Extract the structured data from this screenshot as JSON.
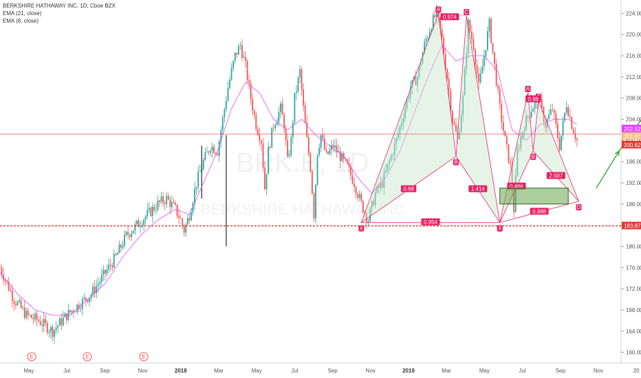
{
  "legend": {
    "title": "BERKSHIRE HATHAWAY INC, 1D, Cboe BZX",
    "ema21": "EMA (21, close)",
    "ema8": "EMA (8, close)"
  },
  "watermark": {
    "line1": "BRK.B, 1D",
    "line2": "BERKSHIRE HATHAWAY INC"
  },
  "colors": {
    "up": "#26a69a",
    "down": "#ef5350",
    "pattern": "#e91e63",
    "pattern_fill": "#c8e6c9",
    "support": "#e53935",
    "zone": "#6aa84f",
    "arrow": "#2e9d2e",
    "ema": "#e040fb"
  },
  "chart_data": {
    "type": "candlestick",
    "symbol": "BRK.B",
    "ylim": [
      158,
      226
    ],
    "y_ticks": [
      160,
      164,
      168,
      172,
      176,
      180,
      184,
      188,
      192,
      196,
      200,
      204,
      208,
      212,
      216,
      220,
      224
    ],
    "x_ticks": [
      "May",
      "Jul",
      "Sep",
      "Nov",
      "2018",
      "Mar",
      "May",
      "Jul",
      "Sep",
      "Nov",
      "2019",
      "Mar",
      "May",
      "Jul",
      "Sep",
      "Nov",
      "20"
    ],
    "price_markers": [
      {
        "value": "202.52",
        "color": "#e040fb"
      },
      {
        "value": "201.07",
        "color": "#f4c085"
      },
      {
        "value": "200.62",
        "color": "#e53935"
      }
    ],
    "support": {
      "value": "183.87"
    },
    "earnings_labels": [
      "E",
      "E",
      "E"
    ],
    "price_path": [
      [
        0,
        176
      ],
      [
        8,
        170
      ],
      [
        15,
        167
      ],
      [
        22,
        166
      ],
      [
        30,
        164
      ],
      [
        38,
        167
      ],
      [
        45,
        169
      ],
      [
        52,
        171
      ],
      [
        60,
        175
      ],
      [
        66,
        178
      ],
      [
        72,
        182
      ],
      [
        78,
        184
      ],
      [
        84,
        186
      ],
      [
        90,
        188
      ],
      [
        95,
        189
      ],
      [
        100,
        187
      ],
      [
        103,
        185
      ],
      [
        105,
        183
      ],
      [
        108,
        186
      ],
      [
        112,
        192
      ],
      [
        116,
        196
      ],
      [
        120,
        199
      ],
      [
        124,
        198
      ],
      [
        127,
        204
      ],
      [
        130,
        210
      ],
      [
        134,
        216
      ],
      [
        137,
        218
      ],
      [
        140,
        214
      ],
      [
        143,
        208
      ],
      [
        146,
        203
      ],
      [
        149,
        200
      ],
      [
        151,
        191
      ],
      [
        153,
        198
      ],
      [
        156,
        203
      ],
      [
        160,
        206
      ],
      [
        162,
        203
      ],
      [
        164,
        196
      ],
      [
        166,
        200
      ],
      [
        168,
        208
      ],
      [
        171,
        213
      ],
      [
        173,
        206
      ],
      [
        175,
        200
      ],
      [
        177,
        195
      ],
      [
        179,
        186
      ],
      [
        181,
        198
      ],
      [
        183,
        201
      ],
      [
        186,
        197
      ],
      [
        190,
        199
      ],
      [
        194,
        197
      ],
      [
        198,
        195
      ],
      [
        202,
        192
      ],
      [
        206,
        188
      ],
      [
        210,
        185
      ],
      [
        214,
        190
      ],
      [
        218,
        192
      ],
      [
        222,
        196
      ],
      [
        226,
        200
      ],
      [
        230,
        205
      ],
      [
        234,
        210
      ],
      [
        238,
        212
      ],
      [
        242,
        218
      ],
      [
        246,
        222
      ],
      [
        249,
        224
      ],
      [
        252,
        219
      ],
      [
        255,
        212
      ],
      [
        258,
        204
      ],
      [
        261,
        200
      ],
      [
        264,
        208
      ],
      [
        267,
        222
      ],
      [
        270,
        218
      ],
      [
        273,
        210
      ],
      [
        276,
        216
      ],
      [
        279,
        222
      ],
      [
        282,
        214
      ],
      [
        285,
        206
      ],
      [
        288,
        200
      ],
      [
        291,
        195
      ],
      [
        293,
        187
      ],
      [
        295,
        198
      ],
      [
        299,
        203
      ],
      [
        303,
        206
      ],
      [
        307,
        208
      ],
      [
        311,
        203
      ],
      [
        315,
        206
      ],
      [
        319,
        199
      ],
      [
        323,
        207
      ],
      [
        326,
        203
      ],
      [
        329,
        200
      ]
    ],
    "ema21": [
      [
        0,
        175
      ],
      [
        10,
        171
      ],
      [
        20,
        168
      ],
      [
        30,
        167
      ],
      [
        40,
        167
      ],
      [
        50,
        170
      ],
      [
        60,
        173
      ],
      [
        70,
        178
      ],
      [
        80,
        182
      ],
      [
        90,
        185
      ],
      [
        100,
        187
      ],
      [
        108,
        186
      ],
      [
        116,
        192
      ],
      [
        124,
        198
      ],
      [
        132,
        206
      ],
      [
        140,
        211
      ],
      [
        148,
        209
      ],
      [
        156,
        204
      ],
      [
        164,
        202
      ],
      [
        172,
        204
      ],
      [
        180,
        201
      ],
      [
        188,
        199
      ],
      [
        196,
        197
      ],
      [
        204,
        193
      ],
      [
        212,
        190
      ],
      [
        220,
        193
      ],
      [
        228,
        198
      ],
      [
        236,
        205
      ],
      [
        244,
        212
      ],
      [
        252,
        218
      ],
      [
        260,
        215
      ],
      [
        268,
        216
      ],
      [
        276,
        216
      ],
      [
        284,
        213
      ],
      [
        292,
        202
      ],
      [
        300,
        200
      ],
      [
        308,
        203
      ],
      [
        316,
        204
      ],
      [
        324,
        204
      ],
      [
        329,
        203
      ]
    ],
    "pattern1": {
      "labels": [
        "X",
        "A",
        "B",
        "C",
        "D"
      ],
      "points": [
        [
          206,
          184.5
        ],
        [
          250,
          224
        ],
        [
          260,
          197
        ],
        [
          266,
          223.5
        ],
        [
          285,
          184.5
        ]
      ],
      "ratios": [
        "0.68",
        "0.974",
        "1.414",
        "0.954"
      ]
    },
    "pattern2": {
      "labels": [
        "X",
        "A",
        "B",
        "C",
        "D"
      ],
      "points": [
        [
          285,
          184.5
        ],
        [
          301,
          209
        ],
        [
          304,
          198
        ],
        [
          307,
          207.5
        ],
        [
          330,
          188.5
        ]
      ],
      "ratios": [
        "0.466",
        "2.007",
        "0.888"
      ]
    },
    "zone": {
      "price_low": 188,
      "price_high": 191
    },
    "arrow_path": [
      [
        340,
        191
      ],
      [
        353,
        198
      ],
      [
        368,
        205
      ]
    ]
  }
}
